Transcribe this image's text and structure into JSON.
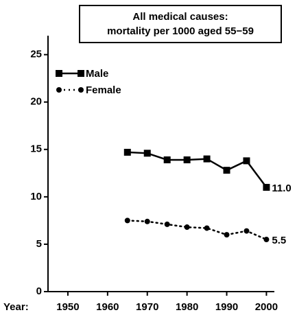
{
  "chart_data": {
    "type": "line",
    "title": [
      "All medical causes:",
      "mortality per 1000  aged 55−59"
    ],
    "x_label": "Year:",
    "x": [
      1965,
      1970,
      1975,
      1980,
      1985,
      1990,
      1995,
      2000
    ],
    "series": [
      {
        "name": "Male",
        "color": "#000000",
        "marker": "square",
        "dash": "solid",
        "values": [
          14.7,
          14.6,
          13.9,
          13.9,
          14.0,
          12.8,
          13.8,
          11.0
        ],
        "value_labels": [
          null,
          null,
          null,
          null,
          null,
          null,
          null,
          "11.0"
        ]
      },
      {
        "name": "Female",
        "color": "#000000",
        "marker": "circle",
        "dash": "dotted",
        "values": [
          7.5,
          7.4,
          7.1,
          6.8,
          6.7,
          6.0,
          6.4,
          5.5
        ]
      }
    ],
    "xlim": [
      1945,
      2002
    ],
    "xticks": [
      1950,
      1960,
      1970,
      1980,
      1990,
      2000
    ],
    "ylim": [
      0,
      27
    ],
    "yticks": [
      0,
      5,
      10,
      15,
      20,
      25
    ],
    "grid": false,
    "legend": "upper left"
  }
}
